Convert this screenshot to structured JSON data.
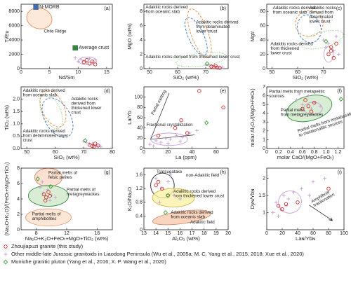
{
  "chart_data": [
    {
      "type": "scatter",
      "letter": "(a)",
      "xlabel": "Nd/Sm",
      "ylabel": "Ti/Eu",
      "xlim": [
        0,
        16
      ],
      "xticks": [
        0,
        5,
        10,
        15
      ],
      "ylim": [
        0,
        9000
      ],
      "yticks": [
        0,
        2000,
        4000,
        6000,
        8000
      ],
      "annotations": [
        [
          "Chile Ridge"
        ]
      ],
      "series": [
        {
          "name": "N-MORB",
          "marker": "square",
          "color": "#3b6fb6",
          "x": [
            2.6
          ],
          "values": [
            8600
          ]
        },
        {
          "name": "Average crust",
          "marker": "square",
          "color": "#2e8b3e",
          "x": [
            9.5
          ],
          "values": [
            2900
          ]
        },
        {
          "marker": "cross",
          "color": "#c8a2d8",
          "x": [
            9.5,
            10.5,
            11,
            12,
            13,
            12.5,
            10,
            11.5
          ],
          "values": [
            1500,
            1300,
            1100,
            1400,
            1200,
            900,
            1000,
            800
          ]
        },
        {
          "marker": "circle",
          "color": "#d0312d",
          "x": [
            11,
            12,
            12.5,
            11.5,
            13
          ],
          "values": [
            900,
            700,
            1000,
            1200,
            600
          ]
        }
      ]
    },
    {
      "type": "scatter",
      "letter": "(b)",
      "xlabel": "SiO₂ (wt%)",
      "ylabel": "MgO (wt%)",
      "xlim": [
        48,
        78
      ],
      "xticks": [
        50,
        60,
        70
      ],
      "ylim": [
        0,
        9
      ],
      "yticks": [
        0,
        2,
        4,
        6,
        8
      ],
      "annotations": [
        [
          "Adakitic rocks derived",
          "from oceanic slab"
        ],
        [
          "Adakitic rocks derived",
          "from delaminated",
          "lower crust"
        ],
        [
          "Adakitic rocks derived from thickened lower crust"
        ]
      ],
      "series": [
        {
          "marker": "cross",
          "color": "#c8a2d8",
          "x": [
            70,
            71,
            72,
            73,
            74,
            75,
            76
          ],
          "values": [
            0.6,
            0.5,
            0.4,
            0.3,
            0.3,
            0.2,
            0.2
          ]
        },
        {
          "marker": "circle",
          "color": "#d0312d",
          "x": [
            72,
            73,
            74,
            73.5,
            75
          ],
          "values": [
            0.3,
            0.2,
            0.15,
            0.4,
            0.1
          ]
        },
        {
          "marker": "diamond",
          "color": "#3a9d3a",
          "x": [
            70.5
          ],
          "values": [
            0.7
          ]
        }
      ]
    },
    {
      "type": "scatter",
      "letter": "(c)",
      "xlabel": "SiO₂ (wt%)",
      "ylabel": "Mg#",
      "xlim": [
        48,
        78
      ],
      "xticks": [
        50,
        60,
        70
      ],
      "ylim": [
        0,
        90
      ],
      "yticks": [
        0,
        20,
        40,
        60,
        80
      ],
      "annotations": [
        [
          "Adakitic rocks derived",
          "from oceanic slab"
        ],
        [
          "Adakitic rocks",
          "derived from",
          "delaminated",
          "lower crust"
        ],
        [
          "Adakitic rocks derived",
          "from thickened",
          "lower crust"
        ]
      ],
      "series": [
        {
          "marker": "cross",
          "color": "#c8a2d8",
          "x": [
            70,
            71,
            72,
            74,
            75,
            76
          ],
          "values": [
            40,
            30,
            35,
            25,
            45,
            20
          ]
        },
        {
          "marker": "circle",
          "color": "#d0312d",
          "x": [
            72,
            73,
            74,
            73,
            75
          ],
          "values": [
            20,
            30,
            15,
            25,
            35
          ]
        },
        {
          "marker": "diamond",
          "color": "#3a9d3a",
          "x": [
            71
          ],
          "values": [
            38
          ]
        }
      ]
    },
    {
      "type": "scatter",
      "letter": "(d)",
      "xlabel": "SiO₂ (wt%)",
      "ylabel": "TiO₂ (wt%)",
      "xlim": [
        48,
        80
      ],
      "xticks": [
        50,
        60,
        70,
        80
      ],
      "ylim": [
        0,
        2.5
      ],
      "yticks": [
        {
          "value": 0,
          "label": "0.0"
        },
        0.5,
        {
          "value": 1,
          "label": "1.0"
        },
        1.5,
        {
          "value": 2,
          "label": "2.0"
        }
      ],
      "annotations": [
        [
          "Adakitic rocks derived",
          "from oceanic slab"
        ],
        [
          "Adakitic rocks",
          "derived from",
          "thickened lower",
          "crust"
        ],
        [
          "Adakitic rocks derived",
          "from delaminated lower",
          "crust"
        ]
      ],
      "series": [
        {
          "marker": "cross",
          "color": "#c8a2d8",
          "x": [
            70,
            71,
            72,
            73,
            74,
            75,
            76
          ],
          "values": [
            0.3,
            0.25,
            0.2,
            0.18,
            0.12,
            0.1,
            0.08
          ]
        },
        {
          "marker": "circle",
          "color": "#d0312d",
          "x": [
            72,
            73,
            74,
            73.5,
            75
          ],
          "values": [
            0.15,
            0.1,
            0.2,
            0.08,
            0.12
          ]
        },
        {
          "marker": "diamond",
          "color": "#3a9d3a",
          "x": [
            70.5
          ],
          "values": [
            0.32
          ]
        }
      ]
    },
    {
      "type": "scatter",
      "letter": "(e)",
      "xlabel": "La (ppm)",
      "ylabel": "La/Yb",
      "xlim": [
        0,
        70
      ],
      "xticks": [
        0,
        20,
        40,
        60
      ],
      "ylim": [
        0,
        120
      ],
      "yticks": [
        0,
        20,
        40,
        60,
        80,
        100
      ],
      "annotations": [
        [
          "Partial melting"
        ],
        [
          "Fractional crystallization"
        ]
      ],
      "series": [
        {
          "marker": "cross",
          "color": "#c8a2d8",
          "x": [
            5,
            10,
            14,
            18,
            22,
            27,
            32,
            38,
            44,
            8,
            20,
            30
          ],
          "values": [
            8,
            15,
            12,
            20,
            18,
            25,
            22,
            30,
            35,
            5,
            10,
            14
          ]
        },
        {
          "marker": "circle",
          "color": "#d0312d",
          "x": [
            46,
            66,
            31,
            26,
            12,
            36
          ],
          "values": [
            112,
            80,
            55,
            40,
            25,
            30
          ]
        },
        {
          "marker": "diamond",
          "color": "#3a9d3a",
          "x": [
            52
          ],
          "values": [
            50
          ]
        }
      ]
    },
    {
      "type": "scatter",
      "letter": "(f)",
      "xlabel": "molar CaO/(MgO+FeOₜ)",
      "ylabel": "molar Al₂O₃/(MgO+FeOₜ)",
      "xlim": [
        0,
        1.3
      ],
      "xticks": [
        0,
        0.2,
        0.4,
        0.6,
        0.8,
        {
          "value": 1,
          "label": "1.0"
        },
        1.2
      ],
      "ylim": [
        0,
        7
      ],
      "yticks": [
        0,
        1,
        2,
        3,
        4,
        5,
        6,
        7
      ],
      "annotations": [
        [
          "Partial melts from metapelitic",
          "sources"
        ],
        [
          "Partial melts",
          "from metagreywackes"
        ],
        [
          "Partial melts from metabasaltic",
          "to metatonalitic sources"
        ]
      ],
      "series": [
        {
          "marker": "cross",
          "color": "#c8a2d8",
          "x": [
            0.5,
            0.6,
            0.7,
            0.8,
            0.9,
            0.55,
            0.75
          ],
          "values": [
            5.5,
            5.0,
            6.0,
            5.2,
            4.8,
            6.2,
            4.5
          ]
        },
        {
          "marker": "circle",
          "color": "#d0312d",
          "x": [
            0.6,
            0.7,
            0.8,
            0.65,
            0.75
          ],
          "values": [
            4.5,
            4.8,
            5.2,
            5.5,
            4.2
          ]
        },
        {
          "marker": "diamond",
          "color": "#3a9d3a",
          "x": [
            1.25
          ],
          "values": [
            5.6
          ]
        }
      ]
    },
    {
      "type": "scatter",
      "letter": "(g)",
      "xlabel": "Na₂O+K₂O+FeOₜ+MgO+TiO₂ (wt%)",
      "ylabel": "(Na₂O+K₂O)/(FeOₜ+MgO+TiO₂)",
      "xlim": [
        6,
        18
      ],
      "xticks": [
        8,
        12,
        16
      ],
      "ylim": [
        0,
        8
      ],
      "yticks": [
        0,
        2,
        4,
        6,
        8
      ],
      "annotations": [
        [
          "Partial melts of",
          "felsic pelites"
        ],
        [
          "Partial melts of",
          "metagreywackes"
        ],
        [
          "Partial melts of",
          "amphibolites"
        ]
      ],
      "series": [
        {
          "marker": "cross",
          "color": "#c8a2d8",
          "x": [
            8.5,
            9,
            9.5,
            10,
            8.8,
            9.8,
            10.5
          ],
          "values": [
            5.5,
            4.8,
            5.2,
            4.5,
            6.2,
            3.8,
            4.2
          ]
        },
        {
          "marker": "circle",
          "color": "#d0312d",
          "x": [
            9,
            9.3,
            9.6,
            9.2,
            9.8
          ],
          "values": [
            4.6,
            4.2,
            4.9,
            3.8,
            4.4
          ]
        },
        {
          "marker": "diamond",
          "color": "#3a9d3a",
          "x": [
            8.2,
            9.9
          ],
          "values": [
            6.6,
            5.6
          ]
        }
      ]
    },
    {
      "type": "scatter",
      "letter": "(h)",
      "xlabel": "Al₂O₃ (wt%)",
      "ylabel": "K₂O/Na₂O",
      "xlim": [
        13,
        20
      ],
      "xticks": [
        13,
        14,
        15,
        16,
        17,
        18,
        19,
        20
      ],
      "ylim": [
        0,
        1.8
      ],
      "yticks": [
        0,
        0.4,
        0.8,
        1.2,
        1.6
      ],
      "annotations": [
        [
          "Tsatsugatake"
        ],
        [
          "non-Adakitic field"
        ],
        [
          "Adakitic rocks derived",
          "from thickened lower crust"
        ],
        [
          "Adakitic rocks derived",
          "from oceanic slab"
        ],
        [
          "Adakitic field"
        ]
      ],
      "series": [
        {
          "marker": "cross",
          "color": "#c8a2d8",
          "x": [
            14,
            14.5,
            15,
            15.5,
            16,
            14.3,
            15.2
          ],
          "values": [
            1.5,
            1.2,
            1.4,
            1.0,
            0.9,
            0.8,
            1.6
          ]
        },
        {
          "marker": "circle",
          "color": "#d0312d",
          "x": [
            14,
            14.5,
            15,
            14.2
          ],
          "values": [
            1.3,
            1.2,
            1.0,
            1.4
          ]
        },
        {
          "marker": "diamond",
          "color": "#3a9d3a",
          "x": [
            14.8,
            15
          ],
          "values": [
            0.5,
            1.0
          ]
        }
      ]
    },
    {
      "type": "scatter",
      "letter": "(i)",
      "xlabel": "Laɴ/Ybɴ",
      "ylabel": "Dyɴ/Ybɴ",
      "xlim": [
        0,
        100
      ],
      "xticks": [
        0,
        20,
        40,
        60,
        80,
        100
      ],
      "ylim": [
        0.5,
        2.3
      ],
      "yticks": [
        1,
        1.5,
        2
      ],
      "annotations": [
        [
          "Amphibole",
          "fractionation"
        ]
      ],
      "series": [
        {
          "marker": "cross",
          "color": "#c8a2d8",
          "x": [
            8,
            12,
            18,
            22,
            28,
            35,
            45,
            55,
            60,
            75,
            15,
            25
          ],
          "values": [
            1.0,
            1.3,
            1.1,
            1.5,
            1.4,
            1.6,
            1.7,
            1.5,
            1.9,
            2.0,
            0.9,
            1.2
          ]
        },
        {
          "marker": "circle",
          "color": "#d0312d",
          "x": [
            15,
            20,
            25,
            40,
            80
          ],
          "values": [
            1.2,
            1.1,
            1.25,
            1.3,
            1.7
          ]
        }
      ]
    }
  ],
  "legend": [
    {
      "label": "Zhoujiapuzi granite (this study)",
      "marker": "circle",
      "color": "#d0312d"
    },
    {
      "label": "Other middle-late Jurassic granitoids in Liaodong Peninsula (Wu et al., 2005a; M. C. Yang et al., 2015, 2018; Xue et al., 2020)",
      "marker": "cross",
      "color": "#c8a2d8"
    },
    {
      "label": "Muniuhe granitic pluton (Yang et al., 2016; X. P. Wang et al., 2020)",
      "marker": "diamond",
      "color": "#3a9d3a"
    }
  ]
}
